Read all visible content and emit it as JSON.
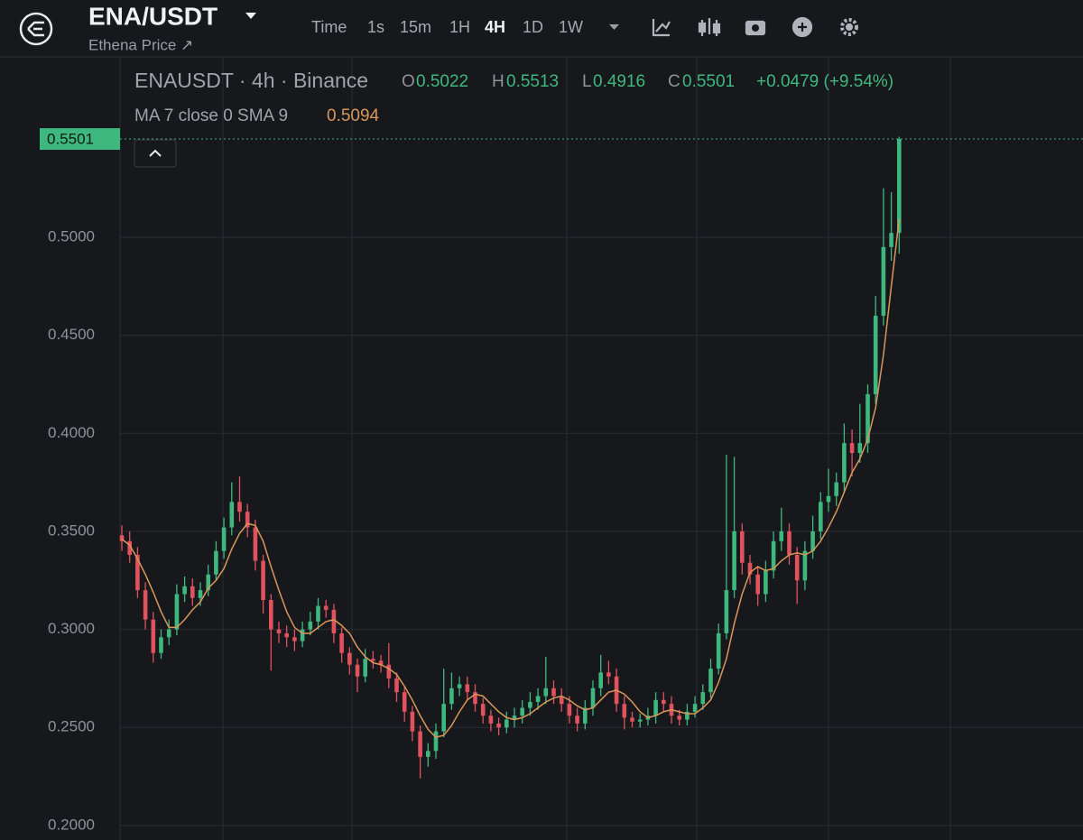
{
  "header": {
    "symbol": "ENA/USDT",
    "subtitle": "Ethena Price ↗",
    "toolbar": [
      "Time",
      "1s",
      "15m",
      "1H",
      "4H",
      "1D",
      "1W"
    ]
  },
  "chart_data": {
    "type": "candlestick",
    "title": "ENAUSDT · 4h · Binance",
    "ohlc_labels": [
      "O",
      "H",
      "L",
      "C"
    ],
    "change": "+0.0479 (+9.54%)",
    "up_color": "#3fb87f",
    "down_color": "#e0525e",
    "open": [
      0.348,
      0.345,
      0.338,
      0.32,
      0.305,
      0.288,
      0.296,
      0.3,
      0.318,
      0.322,
      0.316,
      0.32,
      0.328,
      0.34,
      0.352,
      0.365,
      0.36,
      0.352,
      0.335,
      0.315,
      0.3,
      0.298,
      0.296,
      0.294,
      0.3,
      0.304,
      0.312,
      0.31,
      0.298,
      0.288,
      0.282,
      0.276,
      0.285,
      0.284,
      0.282,
      0.275,
      0.268,
      0.258,
      0.248,
      0.235,
      0.238,
      0.248,
      0.262,
      0.27,
      0.272,
      0.268,
      0.262,
      0.256,
      0.252,
      0.25,
      0.254,
      0.256,
      0.26,
      0.263,
      0.266,
      0.27,
      0.266,
      0.262,
      0.256,
      0.252,
      0.26,
      0.27,
      0.278,
      0.276,
      0.262,
      0.255,
      0.253,
      0.254,
      0.256,
      0.264,
      0.262,
      0.256,
      0.254,
      0.258,
      0.262,
      0.268,
      0.28,
      0.298,
      0.32,
      0.35,
      0.334,
      0.328,
      0.318,
      0.33,
      0.345,
      0.35,
      0.338,
      0.325,
      0.34,
      0.35,
      0.365,
      0.368,
      0.375,
      0.395,
      0.39,
      0.395,
      0.42,
      0.46,
      0.495,
      0.5022
    ],
    "high": [
      0.353,
      0.35,
      0.342,
      0.324,
      0.309,
      0.3,
      0.305,
      0.323,
      0.327,
      0.326,
      0.324,
      0.333,
      0.345,
      0.357,
      0.375,
      0.378,
      0.364,
      0.356,
      0.338,
      0.318,
      0.304,
      0.302,
      0.3,
      0.304,
      0.309,
      0.316,
      0.315,
      0.313,
      0.301,
      0.291,
      0.285,
      0.29,
      0.289,
      0.287,
      0.293,
      0.278,
      0.271,
      0.261,
      0.251,
      0.242,
      0.252,
      0.28,
      0.278,
      0.276,
      0.276,
      0.272,
      0.265,
      0.259,
      0.255,
      0.258,
      0.26,
      0.264,
      0.268,
      0.27,
      0.286,
      0.274,
      0.27,
      0.266,
      0.26,
      0.264,
      0.274,
      0.287,
      0.284,
      0.28,
      0.266,
      0.258,
      0.257,
      0.26,
      0.268,
      0.268,
      0.266,
      0.259,
      0.262,
      0.266,
      0.272,
      0.285,
      0.303,
      0.389,
      0.388,
      0.354,
      0.338,
      0.332,
      0.335,
      0.35,
      0.362,
      0.354,
      0.342,
      0.345,
      0.358,
      0.37,
      0.382,
      0.38,
      0.405,
      0.402,
      0.415,
      0.425,
      0.47,
      0.525,
      0.523,
      0.5513
    ],
    "low": [
      0.34,
      0.334,
      0.316,
      0.3,
      0.283,
      0.285,
      0.292,
      0.297,
      0.314,
      0.312,
      0.312,
      0.317,
      0.325,
      0.336,
      0.348,
      0.355,
      0.347,
      0.33,
      0.308,
      0.279,
      0.293,
      0.291,
      0.289,
      0.291,
      0.297,
      0.3,
      0.306,
      0.293,
      0.283,
      0.277,
      0.268,
      0.273,
      0.28,
      0.278,
      0.27,
      0.263,
      0.253,
      0.243,
      0.224,
      0.23,
      0.234,
      0.245,
      0.259,
      0.266,
      0.264,
      0.258,
      0.252,
      0.248,
      0.246,
      0.247,
      0.25,
      0.252,
      0.256,
      0.259,
      0.262,
      0.262,
      0.258,
      0.252,
      0.248,
      0.249,
      0.256,
      0.266,
      0.272,
      0.258,
      0.249,
      0.25,
      0.25,
      0.251,
      0.252,
      0.258,
      0.252,
      0.251,
      0.251,
      0.255,
      0.259,
      0.265,
      0.277,
      0.295,
      0.316,
      0.328,
      0.323,
      0.312,
      0.314,
      0.326,
      0.34,
      0.333,
      0.313,
      0.32,
      0.336,
      0.346,
      0.36,
      0.363,
      0.37,
      0.378,
      0.385,
      0.39,
      0.415,
      0.455,
      0.488,
      0.4916
    ],
    "close": [
      0.345,
      0.338,
      0.32,
      0.305,
      0.288,
      0.296,
      0.3,
      0.318,
      0.322,
      0.316,
      0.32,
      0.328,
      0.34,
      0.352,
      0.365,
      0.36,
      0.352,
      0.335,
      0.315,
      0.3,
      0.298,
      0.296,
      0.294,
      0.3,
      0.304,
      0.312,
      0.31,
      0.298,
      0.288,
      0.282,
      0.276,
      0.285,
      0.284,
      0.282,
      0.275,
      0.268,
      0.258,
      0.248,
      0.235,
      0.238,
      0.248,
      0.262,
      0.27,
      0.272,
      0.268,
      0.262,
      0.256,
      0.252,
      0.25,
      0.254,
      0.256,
      0.26,
      0.263,
      0.266,
      0.27,
      0.266,
      0.262,
      0.256,
      0.252,
      0.26,
      0.27,
      0.278,
      0.276,
      0.262,
      0.255,
      0.253,
      0.254,
      0.256,
      0.264,
      0.262,
      0.256,
      0.254,
      0.258,
      0.262,
      0.268,
      0.28,
      0.298,
      0.32,
      0.35,
      0.334,
      0.328,
      0.318,
      0.33,
      0.345,
      0.35,
      0.338,
      0.325,
      0.34,
      0.35,
      0.365,
      0.368,
      0.375,
      0.395,
      0.39,
      0.395,
      0.42,
      0.46,
      0.495,
      0.5022,
      0.5501
    ],
    "ma": {
      "name": "MA 7 close 0 SMA 9",
      "color": "#d9975a",
      "values": [
        0.346,
        0.343,
        0.336,
        0.328,
        0.319,
        0.309,
        0.301,
        0.301,
        0.305,
        0.31,
        0.314,
        0.321,
        0.325,
        0.331,
        0.341,
        0.349,
        0.354,
        0.353,
        0.345,
        0.332,
        0.32,
        0.309,
        0.301,
        0.298,
        0.298,
        0.301,
        0.304,
        0.305,
        0.302,
        0.298,
        0.291,
        0.286,
        0.283,
        0.282,
        0.28,
        0.277,
        0.271,
        0.264,
        0.256,
        0.249,
        0.245,
        0.246,
        0.251,
        0.258,
        0.264,
        0.267,
        0.266,
        0.262,
        0.258,
        0.255,
        0.254,
        0.255,
        0.257,
        0.26,
        0.263,
        0.265,
        0.266,
        0.264,
        0.261,
        0.259,
        0.26,
        0.264,
        0.268,
        0.269,
        0.267,
        0.263,
        0.258,
        0.255,
        0.256,
        0.258,
        0.259,
        0.258,
        0.257,
        0.257,
        0.26,
        0.264,
        0.273,
        0.285,
        0.303,
        0.318,
        0.329,
        0.332,
        0.33,
        0.331,
        0.335,
        0.338,
        0.339,
        0.338,
        0.34,
        0.345,
        0.352,
        0.36,
        0.37,
        0.38,
        0.387,
        0.397,
        0.413,
        0.44,
        0.475,
        0.5094
      ]
    },
    "ylim": [
      0.1926,
      0.592
    ],
    "yticks": [
      {
        "value": 0.2,
        "label": "0.2000"
      },
      {
        "value": 0.25,
        "label": "0.2500"
      },
      {
        "value": 0.3,
        "label": "0.3000"
      },
      {
        "value": 0.35,
        "label": "0.3500"
      },
      {
        "value": 0.4,
        "label": "0.4000"
      },
      {
        "value": 0.45,
        "label": "0.4500"
      },
      {
        "value": 0.5,
        "label": "0.5000"
      }
    ],
    "grid": true
  }
}
